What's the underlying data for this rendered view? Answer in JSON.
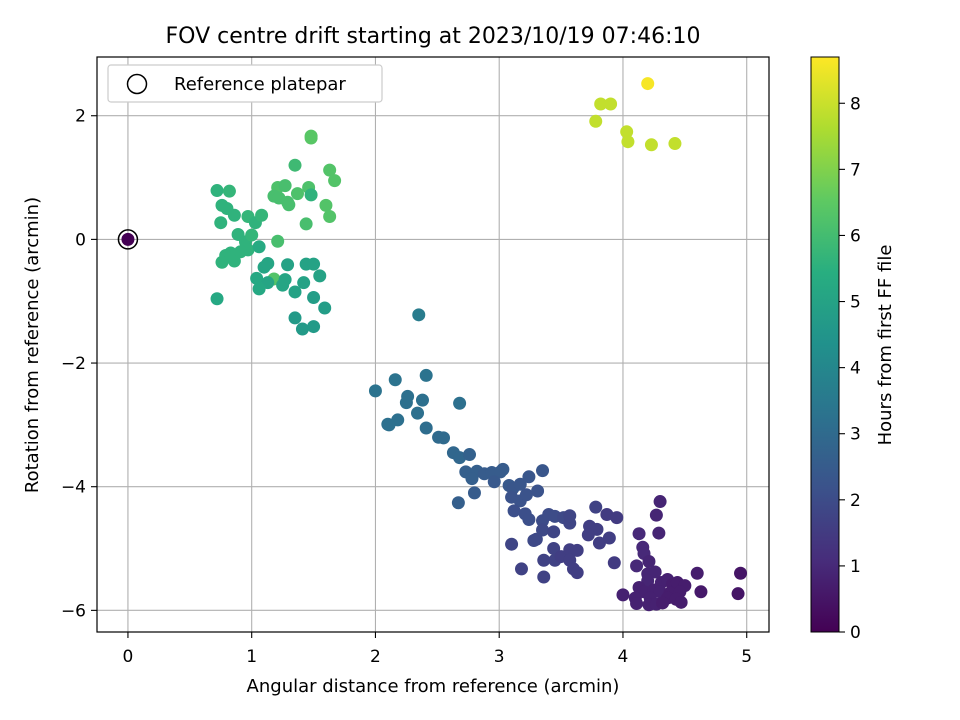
{
  "chart_data": {
    "type": "scatter",
    "title": "FOV centre drift starting at 2023/10/19 07:46:10",
    "xlabel": "Angular distance from reference (arcmin)",
    "ylabel": "Rotation from reference (arcmin)",
    "xlim": [
      -0.25,
      5.18
    ],
    "ylim": [
      -6.35,
      2.95
    ],
    "xticks": [
      0,
      1,
      2,
      3,
      4,
      5
    ],
    "yticks": [
      -6,
      -4,
      -2,
      0,
      2
    ],
    "grid": true,
    "legend": {
      "placement": "top-left",
      "entries": [
        "Reference platepar"
      ]
    },
    "reference_point": {
      "x": 0,
      "y": 0
    },
    "colorbar": {
      "label": "Hours from first FF file",
      "colormap": "viridis",
      "range": [
        0,
        8.7
      ],
      "ticks": [
        0,
        1,
        2,
        3,
        4,
        5,
        6,
        7,
        8
      ]
    },
    "points": [
      {
        "x": 4.2,
        "y": 2.52,
        "c": 8.6
      },
      {
        "x": 3.82,
        "y": 2.19,
        "c": 7.9
      },
      {
        "x": 3.9,
        "y": 2.19,
        "c": 7.9
      },
      {
        "x": 3.78,
        "y": 1.91,
        "c": 7.9
      },
      {
        "x": 4.03,
        "y": 1.74,
        "c": 7.9
      },
      {
        "x": 4.04,
        "y": 1.58,
        "c": 7.9
      },
      {
        "x": 4.23,
        "y": 1.53,
        "c": 7.9
      },
      {
        "x": 4.42,
        "y": 1.55,
        "c": 7.9
      },
      {
        "x": 1.48,
        "y": 1.67,
        "c": 6.4
      },
      {
        "x": 1.48,
        "y": 1.64,
        "c": 6.4
      },
      {
        "x": 1.63,
        "y": 1.12,
        "c": 6.3
      },
      {
        "x": 1.67,
        "y": 0.95,
        "c": 6.3
      },
      {
        "x": 1.35,
        "y": 1.2,
        "c": 5.9
      },
      {
        "x": 1.46,
        "y": 0.84,
        "c": 6.2
      },
      {
        "x": 1.6,
        "y": 0.55,
        "c": 6.3
      },
      {
        "x": 1.63,
        "y": 0.37,
        "c": 6.3
      },
      {
        "x": 1.21,
        "y": 0.84,
        "c": 6.2
      },
      {
        "x": 1.27,
        "y": 0.87,
        "c": 6.1
      },
      {
        "x": 1.18,
        "y": 0.7,
        "c": 6.1
      },
      {
        "x": 1.22,
        "y": 0.67,
        "c": 6.1
      },
      {
        "x": 1.29,
        "y": 0.6,
        "c": 6.1
      },
      {
        "x": 1.3,
        "y": 0.56,
        "c": 6.1
      },
      {
        "x": 1.37,
        "y": 0.74,
        "c": 6.2
      },
      {
        "x": 1.48,
        "y": 0.72,
        "c": 5.6
      },
      {
        "x": 1.44,
        "y": 0.25,
        "c": 6.1
      },
      {
        "x": 1.21,
        "y": -0.03,
        "c": 6.1
      },
      {
        "x": 1.18,
        "y": -0.64,
        "c": 6.3
      },
      {
        "x": 0.72,
        "y": 0.79,
        "c": 5.6
      },
      {
        "x": 0.82,
        "y": 0.78,
        "c": 5.7
      },
      {
        "x": 0.76,
        "y": 0.55,
        "c": 5.6
      },
      {
        "x": 0.8,
        "y": 0.5,
        "c": 5.6
      },
      {
        "x": 0.75,
        "y": 0.27,
        "c": 5.6
      },
      {
        "x": 0.86,
        "y": 0.39,
        "c": 5.6
      },
      {
        "x": 0.97,
        "y": 0.37,
        "c": 5.7
      },
      {
        "x": 1.03,
        "y": 0.27,
        "c": 5.6
      },
      {
        "x": 1.08,
        "y": 0.39,
        "c": 5.7
      },
      {
        "x": 0.89,
        "y": 0.08,
        "c": 5.6
      },
      {
        "x": 0.95,
        "y": -0.04,
        "c": 5.6
      },
      {
        "x": 1.0,
        "y": 0.07,
        "c": 5.7
      },
      {
        "x": 0.97,
        "y": -0.17,
        "c": 5.6
      },
      {
        "x": 0.83,
        "y": -0.22,
        "c": 5.6
      },
      {
        "x": 0.79,
        "y": -0.26,
        "c": 5.6
      },
      {
        "x": 0.76,
        "y": -0.37,
        "c": 5.6
      },
      {
        "x": 0.86,
        "y": -0.35,
        "c": 5.6
      },
      {
        "x": 0.91,
        "y": -0.2,
        "c": 5.6
      },
      {
        "x": 1.06,
        "y": -0.12,
        "c": 5.3
      },
      {
        "x": 1.1,
        "y": -0.45,
        "c": 5.1
      },
      {
        "x": 1.13,
        "y": -0.39,
        "c": 5.1
      },
      {
        "x": 1.04,
        "y": -0.63,
        "c": 5.2
      },
      {
        "x": 1.13,
        "y": -0.7,
        "c": 5.1
      },
      {
        "x": 1.06,
        "y": -0.8,
        "c": 5.2
      },
      {
        "x": 1.25,
        "y": -0.74,
        "c": 5.1
      },
      {
        "x": 1.27,
        "y": -0.65,
        "c": 5.1
      },
      {
        "x": 1.29,
        "y": -0.41,
        "c": 5.0
      },
      {
        "x": 1.44,
        "y": -0.4,
        "c": 5.0
      },
      {
        "x": 1.5,
        "y": -0.4,
        "c": 5.0
      },
      {
        "x": 1.42,
        "y": -0.7,
        "c": 5.0
      },
      {
        "x": 1.55,
        "y": -0.59,
        "c": 5.0
      },
      {
        "x": 1.35,
        "y": -0.85,
        "c": 5.0
      },
      {
        "x": 1.5,
        "y": -0.94,
        "c": 4.8
      },
      {
        "x": 1.59,
        "y": -1.11,
        "c": 4.8
      },
      {
        "x": 1.35,
        "y": -1.27,
        "c": 4.7
      },
      {
        "x": 1.41,
        "y": -1.45,
        "c": 4.7
      },
      {
        "x": 1.5,
        "y": -1.41,
        "c": 4.7
      },
      {
        "x": 0.72,
        "y": -0.96,
        "c": 5.2
      },
      {
        "x": 2.35,
        "y": -1.22,
        "c": 3.6
      },
      {
        "x": 2.0,
        "y": -2.45,
        "c": 3.3
      },
      {
        "x": 2.16,
        "y": -2.27,
        "c": 3.3
      },
      {
        "x": 2.41,
        "y": -2.2,
        "c": 3.3
      },
      {
        "x": 2.26,
        "y": -2.54,
        "c": 3.2
      },
      {
        "x": 2.38,
        "y": -2.6,
        "c": 3.2
      },
      {
        "x": 2.25,
        "y": -2.64,
        "c": 3.2
      },
      {
        "x": 2.34,
        "y": -2.81,
        "c": 3.2
      },
      {
        "x": 2.68,
        "y": -2.65,
        "c": 3.2
      },
      {
        "x": 2.18,
        "y": -2.92,
        "c": 3.2
      },
      {
        "x": 2.1,
        "y": -2.99,
        "c": 3.2
      },
      {
        "x": 2.11,
        "y": -3.0,
        "c": 3.2
      },
      {
        "x": 2.41,
        "y": -3.05,
        "c": 3.1
      },
      {
        "x": 2.51,
        "y": -3.2,
        "c": 3.0
      },
      {
        "x": 2.55,
        "y": -3.21,
        "c": 3.0
      },
      {
        "x": 2.63,
        "y": -3.45,
        "c": 2.9
      },
      {
        "x": 2.68,
        "y": -3.53,
        "c": 2.9
      },
      {
        "x": 2.76,
        "y": -3.48,
        "c": 2.7
      },
      {
        "x": 2.73,
        "y": -3.76,
        "c": 2.6
      },
      {
        "x": 2.82,
        "y": -3.75,
        "c": 2.6
      },
      {
        "x": 2.78,
        "y": -3.87,
        "c": 2.6
      },
      {
        "x": 2.88,
        "y": -3.79,
        "c": 2.5
      },
      {
        "x": 2.94,
        "y": -3.77,
        "c": 2.5
      },
      {
        "x": 3.03,
        "y": -3.72,
        "c": 2.5
      },
      {
        "x": 3.01,
        "y": -3.76,
        "c": 2.5
      },
      {
        "x": 2.96,
        "y": -3.92,
        "c": 2.4
      },
      {
        "x": 3.08,
        "y": -3.98,
        "c": 2.4
      },
      {
        "x": 3.11,
        "y": -4.03,
        "c": 2.3
      },
      {
        "x": 3.17,
        "y": -3.96,
        "c": 2.3
      },
      {
        "x": 3.24,
        "y": -3.84,
        "c": 2.3
      },
      {
        "x": 3.35,
        "y": -3.74,
        "c": 2.3
      },
      {
        "x": 2.8,
        "y": -4.1,
        "c": 2.5
      },
      {
        "x": 2.67,
        "y": -4.26,
        "c": 2.6
      },
      {
        "x": 3.1,
        "y": -4.17,
        "c": 2.2
      },
      {
        "x": 3.17,
        "y": -4.23,
        "c": 2.2
      },
      {
        "x": 3.22,
        "y": -4.13,
        "c": 2.2
      },
      {
        "x": 3.31,
        "y": -4.07,
        "c": 2.2
      },
      {
        "x": 3.12,
        "y": -4.39,
        "c": 2.1
      },
      {
        "x": 3.21,
        "y": -4.44,
        "c": 2.1
      },
      {
        "x": 3.24,
        "y": -4.53,
        "c": 2.1
      },
      {
        "x": 3.35,
        "y": -4.55,
        "c": 2.0
      },
      {
        "x": 3.4,
        "y": -4.45,
        "c": 2.0
      },
      {
        "x": 3.45,
        "y": -4.48,
        "c": 2.0
      },
      {
        "x": 3.35,
        "y": -4.7,
        "c": 1.9
      },
      {
        "x": 3.3,
        "y": -4.85,
        "c": 1.9
      },
      {
        "x": 3.28,
        "y": -4.87,
        "c": 1.9
      },
      {
        "x": 3.44,
        "y": -4.73,
        "c": 1.8
      },
      {
        "x": 3.52,
        "y": -4.5,
        "c": 1.9
      },
      {
        "x": 3.57,
        "y": -4.59,
        "c": 1.8
      },
      {
        "x": 3.57,
        "y": -4.47,
        "c": 1.8
      },
      {
        "x": 3.1,
        "y": -4.93,
        "c": 1.8
      },
      {
        "x": 3.78,
        "y": -4.33,
        "c": 1.7
      },
      {
        "x": 3.73,
        "y": -4.64,
        "c": 1.6
      },
      {
        "x": 3.79,
        "y": -4.69,
        "c": 1.6
      },
      {
        "x": 3.72,
        "y": -4.78,
        "c": 1.6
      },
      {
        "x": 3.87,
        "y": -4.45,
        "c": 1.5
      },
      {
        "x": 3.95,
        "y": -4.5,
        "c": 1.5
      },
      {
        "x": 3.81,
        "y": -4.91,
        "c": 1.6
      },
      {
        "x": 3.89,
        "y": -4.83,
        "c": 1.6
      },
      {
        "x": 3.44,
        "y": -5.0,
        "c": 1.7
      },
      {
        "x": 3.45,
        "y": -5.19,
        "c": 1.7
      },
      {
        "x": 3.5,
        "y": -5.13,
        "c": 1.6
      },
      {
        "x": 3.36,
        "y": -5.19,
        "c": 1.7
      },
      {
        "x": 3.57,
        "y": -5.02,
        "c": 1.6
      },
      {
        "x": 3.63,
        "y": -5.03,
        "c": 1.6
      },
      {
        "x": 3.57,
        "y": -5.19,
        "c": 1.6
      },
      {
        "x": 3.6,
        "y": -5.33,
        "c": 1.6
      },
      {
        "x": 3.63,
        "y": -5.39,
        "c": 1.6
      },
      {
        "x": 3.18,
        "y": -5.33,
        "c": 1.7
      },
      {
        "x": 3.36,
        "y": -5.46,
        "c": 1.7
      },
      {
        "x": 3.93,
        "y": -5.23,
        "c": 1.5
      },
      {
        "x": 4.3,
        "y": -4.24,
        "c": 0.9
      },
      {
        "x": 4.27,
        "y": -4.46,
        "c": 0.9
      },
      {
        "x": 4.13,
        "y": -4.76,
        "c": 1.0
      },
      {
        "x": 4.29,
        "y": -4.75,
        "c": 0.9
      },
      {
        "x": 4.16,
        "y": -4.98,
        "c": 1.0
      },
      {
        "x": 4.17,
        "y": -5.08,
        "c": 1.0
      },
      {
        "x": 4.21,
        "y": -5.21,
        "c": 0.9
      },
      {
        "x": 4.11,
        "y": -5.28,
        "c": 1.0
      },
      {
        "x": 4.2,
        "y": -5.41,
        "c": 0.9
      },
      {
        "x": 4.26,
        "y": -5.38,
        "c": 0.9
      },
      {
        "x": 4.2,
        "y": -5.52,
        "c": 0.9
      },
      {
        "x": 4.31,
        "y": -5.55,
        "c": 0.8
      },
      {
        "x": 4.36,
        "y": -5.5,
        "c": 0.8
      },
      {
        "x": 4.4,
        "y": -5.58,
        "c": 0.7
      },
      {
        "x": 4.44,
        "y": -5.55,
        "c": 0.7
      },
      {
        "x": 4.5,
        "y": -5.6,
        "c": 0.7
      },
      {
        "x": 4.6,
        "y": -5.4,
        "c": 0.7
      },
      {
        "x": 4.95,
        "y": -5.4,
        "c": 0.5
      },
      {
        "x": 4.13,
        "y": -5.63,
        "c": 0.8
      },
      {
        "x": 4.17,
        "y": -5.7,
        "c": 0.8
      },
      {
        "x": 4.25,
        "y": -5.67,
        "c": 0.8
      },
      {
        "x": 4.3,
        "y": -5.7,
        "c": 0.8
      },
      {
        "x": 4.38,
        "y": -5.72,
        "c": 0.7
      },
      {
        "x": 4.46,
        "y": -5.7,
        "c": 0.7
      },
      {
        "x": 4.0,
        "y": -5.75,
        "c": 0.8
      },
      {
        "x": 4.1,
        "y": -5.8,
        "c": 0.8
      },
      {
        "x": 4.22,
        "y": -5.8,
        "c": 0.8
      },
      {
        "x": 4.36,
        "y": -5.8,
        "c": 0.7
      },
      {
        "x": 4.43,
        "y": -5.82,
        "c": 0.7
      },
      {
        "x": 4.63,
        "y": -5.7,
        "c": 0.6
      },
      {
        "x": 4.93,
        "y": -5.73,
        "c": 0.5
      },
      {
        "x": 4.11,
        "y": -5.89,
        "c": 0.8
      },
      {
        "x": 4.21,
        "y": -5.91,
        "c": 0.8
      },
      {
        "x": 4.27,
        "y": -5.9,
        "c": 0.8
      },
      {
        "x": 4.32,
        "y": -5.88,
        "c": 0.7
      },
      {
        "x": 4.47,
        "y": -5.87,
        "c": 0.7
      }
    ]
  }
}
